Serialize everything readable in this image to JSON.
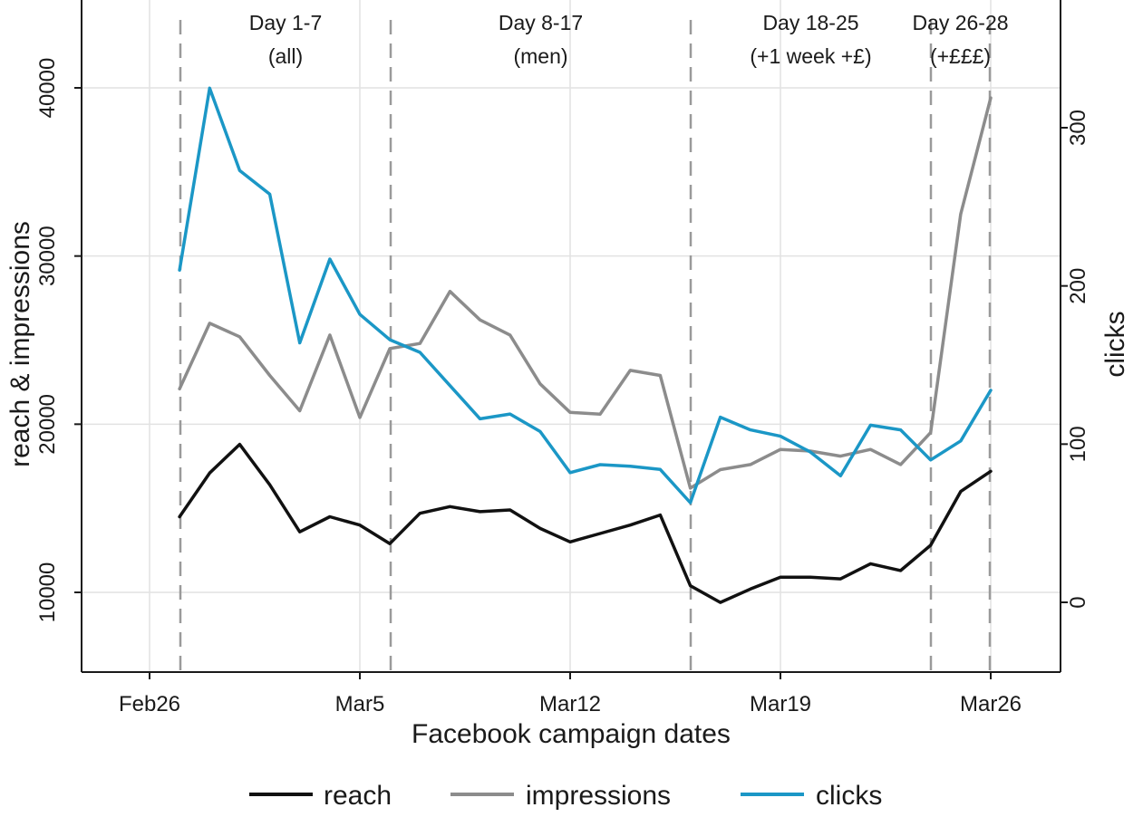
{
  "chart_data": {
    "type": "line",
    "xlabel": "Facebook campaign dates",
    "ylabel_left": "reach & impressions",
    "ylabel_right": "clicks",
    "x_dates": [
      "Feb27",
      "Feb28",
      "Mar1",
      "Mar2",
      "Mar3",
      "Mar4",
      "Mar5",
      "Mar6",
      "Mar7",
      "Mar8",
      "Mar9",
      "Mar10",
      "Mar11",
      "Mar12",
      "Mar13",
      "Mar14",
      "Mar15",
      "Mar16",
      "Mar17",
      "Mar18",
      "Mar19",
      "Mar20",
      "Mar21",
      "Mar22",
      "Mar23",
      "Mar24",
      "Mar25",
      "Mar26"
    ],
    "x_ticks": [
      "Feb26",
      "Mar5",
      "Mar12",
      "Mar19",
      "Mar26"
    ],
    "y_left_ticks": [
      10000,
      20000,
      30000,
      40000
    ],
    "y_left_range": [
      5500,
      44000
    ],
    "y_right_ticks": [
      0,
      100,
      200,
      300
    ],
    "y_right_range": [
      -45,
      370
    ],
    "series": [
      {
        "name": "reach",
        "axis": "left",
        "color": "#111111",
        "values": [
          14500,
          17100,
          18800,
          16400,
          13600,
          14500,
          14000,
          12900,
          14700,
          15100,
          14800,
          14900,
          13800,
          13000,
          13500,
          14000,
          14600,
          10400,
          9400,
          10200,
          10900,
          10900,
          10800,
          11700,
          11300,
          12800,
          16000,
          17200
        ]
      },
      {
        "name": "impressions",
        "axis": "left",
        "color": "#8c8c8c",
        "values": [
          22100,
          26000,
          25200,
          22900,
          20800,
          25300,
          20400,
          24500,
          24800,
          27900,
          26200,
          25300,
          22400,
          20700,
          20600,
          23200,
          22900,
          16200,
          17300,
          17600,
          18500,
          18400,
          18100,
          18500,
          17600,
          19500,
          32500,
          39400
        ]
      },
      {
        "name": "clicks",
        "axis": "right",
        "color": "#1b97c6",
        "values": [
          210,
          325,
          273,
          258,
          164,
          217,
          182,
          166,
          158,
          137,
          116,
          119,
          108,
          82,
          87,
          86,
          84,
          63,
          117,
          109,
          105,
          95,
          80,
          112,
          109,
          90,
          102,
          134
        ]
      }
    ],
    "phases": [
      {
        "line1": "Day 1-7",
        "line2": "(all)"
      },
      {
        "line1": "Day 8-17",
        "line2": "(men)"
      },
      {
        "line1": "Day 18-25",
        "line2": "(+1 week +£)"
      },
      {
        "line1": "Day 26-28",
        "line2": "(+£££)"
      }
    ],
    "phase_boundaries_day_index": [
      0,
      7,
      17,
      25,
      27
    ],
    "legend": [
      "reach",
      "impressions",
      "clicks"
    ],
    "legend_position": "bottom",
    "grid": true
  }
}
